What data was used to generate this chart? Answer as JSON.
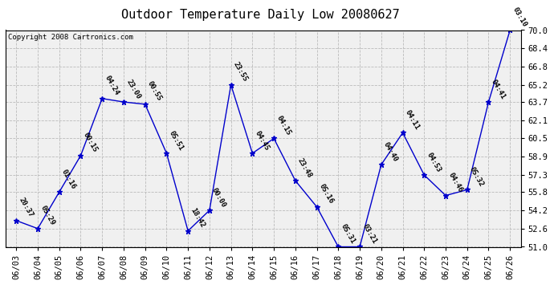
{
  "title": "Outdoor Temperature Daily Low 20080627",
  "copyright": "Copyright 2008 Cartronics.com",
  "dates": [
    "06/03",
    "06/04",
    "06/05",
    "06/06",
    "06/07",
    "06/08",
    "06/09",
    "06/10",
    "06/11",
    "06/12",
    "06/13",
    "06/14",
    "06/15",
    "06/16",
    "06/17",
    "06/18",
    "06/19",
    "06/20",
    "06/21",
    "06/22",
    "06/23",
    "06/24",
    "06/25",
    "06/26"
  ],
  "values": [
    53.3,
    52.6,
    55.8,
    59.0,
    64.0,
    63.7,
    63.5,
    59.2,
    52.4,
    54.2,
    65.2,
    59.2,
    60.5,
    56.8,
    54.5,
    51.0,
    51.0,
    58.2,
    61.0,
    57.3,
    55.5,
    56.0,
    63.7,
    70.0
  ],
  "labels": [
    "20:37",
    "05:29",
    "01:16",
    "00:15",
    "04:24",
    "23:00",
    "00:55",
    "05:51",
    "18:42",
    "00:00",
    "23:55",
    "04:45",
    "04:15",
    "23:48",
    "05:16",
    "05:31",
    "03:21",
    "04:40",
    "04:11",
    "04:53",
    "04:46",
    "05:32",
    "04:41",
    "03:10"
  ],
  "ylim": [
    51.0,
    70.0
  ],
  "yticks": [
    51.0,
    52.6,
    54.2,
    55.8,
    57.3,
    58.9,
    60.5,
    62.1,
    63.7,
    65.2,
    66.8,
    68.4,
    70.0
  ],
  "line_color": "#0000cc",
  "marker": "*",
  "marker_color": "#0000cc",
  "marker_size": 5,
  "grid_color": "#bbbbbb",
  "bg_color": "#ffffff",
  "plot_bg_color": "#f0f0f0",
  "title_fontsize": 11,
  "label_fontsize": 6.5,
  "tick_fontsize": 7.5,
  "copyright_fontsize": 6.5
}
